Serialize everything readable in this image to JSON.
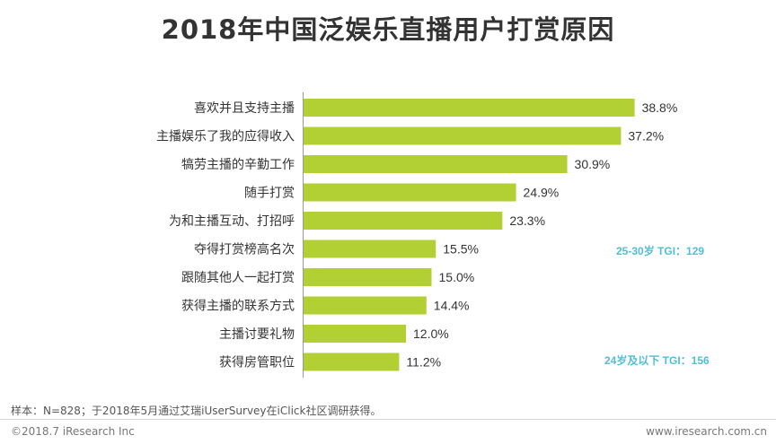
{
  "chart_data": {
    "type": "bar",
    "orientation": "horizontal",
    "title": "2018年中国泛娱乐直播用户打赏原因",
    "categories": [
      "喜欢并且支持主播",
      "主播娱乐了我的应得收入",
      "犒劳主播的辛勤工作",
      "随手打赏",
      "为和主播互动、打招呼",
      "夺得打赏榜高名次",
      "跟随其他人一起打赏",
      "获得主播的联系方式",
      "主播讨要礼物",
      "获得房管职位"
    ],
    "values": [
      38.8,
      37.2,
      30.9,
      24.9,
      23.3,
      15.5,
      15.0,
      14.4,
      12.0,
      11.2
    ],
    "value_labels": [
      "38.8%",
      "37.2%",
      "30.9%",
      "24.9%",
      "23.3%",
      "15.5%",
      "15.0%",
      "14.4%",
      "12.0%",
      "11.2%"
    ],
    "unit": "%",
    "xlim": [
      0,
      45
    ],
    "bar_color": "#b2cf34",
    "annotations": [
      "25-30岁 TGI：129",
      "24岁及以下 TGI：156"
    ]
  },
  "footer": {
    "note": "样本：N=828；于2018年5月通过艾瑞iUserSurvey在iClick社区调研获得。",
    "copyright": "©2018.7 iResearch Inc",
    "website": "www.iresearch.com.cn"
  },
  "colors": {
    "bar": "#b2cf34",
    "annotation": "#4dbfd6",
    "text": "#333333"
  }
}
